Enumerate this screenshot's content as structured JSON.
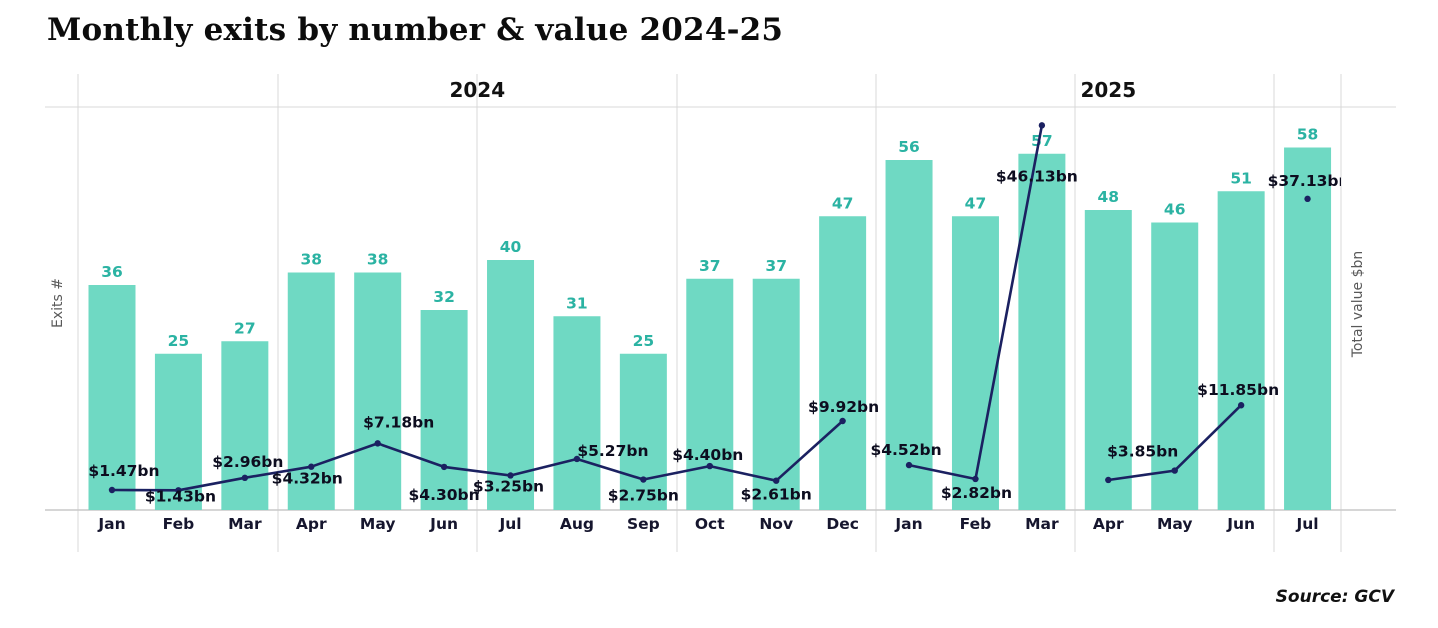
{
  "header": {
    "title": "Monthly exits by number & value 2024-25"
  },
  "footer": {
    "source": "Source: GCV"
  },
  "chart_data": {
    "type": "combo-bar-line",
    "title": "Monthly exits by number & value 2024-25",
    "categories": [
      "Jan",
      "Feb",
      "Mar",
      "Apr",
      "May",
      "Jun",
      "Jul",
      "Aug",
      "Sep",
      "Oct",
      "Nov",
      "Dec",
      "Jan",
      "Feb",
      "Mar",
      "Apr",
      "May",
      "Jun",
      "Jul"
    ],
    "year_groups": [
      {
        "label": "2024",
        "from": 0,
        "to": 11
      },
      {
        "label": "2025",
        "from": 12,
        "to": 18
      }
    ],
    "panel_groups": [
      [
        0,
        2
      ],
      [
        3,
        5
      ],
      [
        6,
        8
      ],
      [
        9,
        11
      ],
      [
        12,
        14
      ],
      [
        15,
        17
      ],
      [
        18,
        18
      ]
    ],
    "series": [
      {
        "name": "Exits #",
        "type": "bar",
        "axis": "left",
        "values": [
          36,
          25,
          27,
          38,
          38,
          32,
          40,
          31,
          25,
          37,
          37,
          47,
          56,
          47,
          57,
          48,
          46,
          51,
          58
        ]
      },
      {
        "name": "Total value $bn",
        "type": "line",
        "axis": "right",
        "values": [
          1.47,
          1.43,
          2.96,
          4.32,
          7.18,
          4.3,
          3.25,
          5.27,
          2.75,
          4.4,
          2.61,
          9.92,
          4.52,
          2.82,
          46.13,
          2.7,
          3.85,
          11.85,
          37.13
        ],
        "value_labels": [
          "$1.47bn",
          "$1.43bn",
          "$2.96bn",
          "$4.32bn",
          "$7.18bn",
          "$4.30bn",
          "$3.25bn",
          "$5.27bn",
          "$2.75bn",
          "$4.40bn",
          "$2.61bn",
          "$9.92bn",
          "$4.52bn",
          "$2.82bn",
          "$46.13bn",
          null,
          "$3.85bn",
          "$11.85bn",
          "$37.13bn"
        ],
        "segments": [
          [
            0,
            11
          ],
          [
            12,
            14
          ],
          [
            15,
            17
          ],
          [
            18,
            18
          ]
        ]
      }
    ],
    "axes": {
      "left_label": "Exits #",
      "right_label": "Total value $bn",
      "left_range": [
        0,
        64
      ],
      "right_range": [
        0,
        49
      ],
      "grid": "minimal"
    },
    "legend": "none",
    "colors": {
      "bar": "#6FD9C3",
      "bar_value_label": "#2BB3A3",
      "line": "#1B2161",
      "line_value_label": "#0D0D1F",
      "month_label": "#16162E",
      "year_label": "#111111",
      "axis_label": "#595959",
      "grid": "#D9D9D9",
      "baseline": "#C9C9C9"
    }
  }
}
